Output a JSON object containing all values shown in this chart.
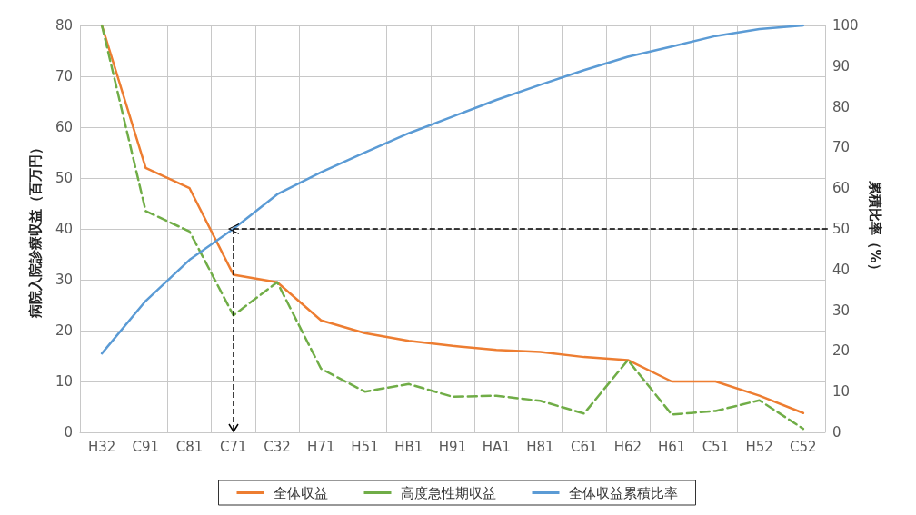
{
  "chart_data": {
    "type": "line",
    "ylabel": "病院入院診療収益（百万円）",
    "y2label": "累積比率（%）",
    "categories": [
      "H32",
      "C91",
      "C81",
      "C71",
      "C32",
      "H71",
      "H51",
      "HB1",
      "H91",
      "HA1",
      "H81",
      "C61",
      "H62",
      "H61",
      "C51",
      "H52",
      "C52"
    ],
    "series": [
      {
        "name": "全体収益",
        "color": "#ed7d31",
        "line_style": "solid",
        "values": [
          80,
          52,
          48,
          31,
          29.5,
          22,
          19.5,
          18,
          17,
          16.2,
          15.8,
          14.8,
          14.2,
          10,
          10,
          7.2,
          3.8
        ]
      },
      {
        "name": "高度急性期収益",
        "color": "#70ad47",
        "line_style": "dashed",
        "values": [
          80,
          43.5,
          39.5,
          23,
          29.5,
          12.5,
          8,
          9.5,
          7,
          7.2,
          6.2,
          3.7,
          14.2,
          3.5,
          4.2,
          6.3,
          0.7
        ]
      },
      {
        "name": "全体収益累積比率",
        "color": "#5b9bd5",
        "line_style": "solid",
        "axis": "y2",
        "values": [
          19.4,
          32.3,
          42.4,
          50,
          58.5,
          63.9,
          68.8,
          73.5,
          77.6,
          81.7,
          85.4,
          89,
          92.3,
          94.8,
          97.4,
          99.1,
          100
        ]
      }
    ],
    "ylim": [
      0,
      80
    ],
    "yticks": [
      0,
      10,
      20,
      30,
      40,
      50,
      60,
      70,
      80
    ],
    "y2lim": [
      0,
      100
    ],
    "y2ticks": [
      0,
      10,
      20,
      30,
      40,
      50,
      60,
      70,
      80,
      90,
      100
    ],
    "ref_lines": [
      {
        "axis": "y2",
        "value": 50,
        "color": "#000000",
        "line_style": "dashed"
      },
      {
        "axis": "x",
        "value": "C71",
        "color": "#000000",
        "line_style": "dashed"
      }
    ],
    "grid": true,
    "legend": "bottom",
    "marker": "none"
  }
}
